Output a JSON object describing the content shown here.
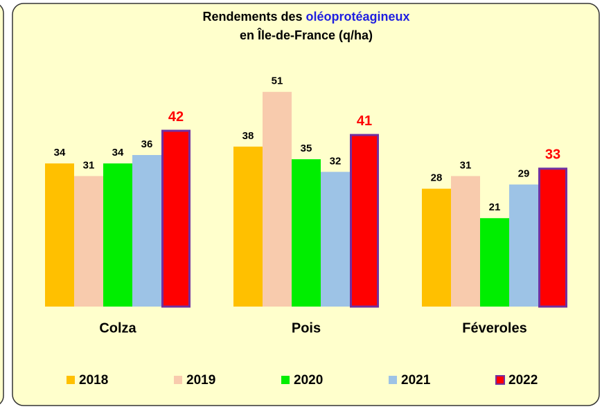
{
  "chart_data": {
    "type": "bar",
    "title": {
      "line1": "Rendements des",
      "highlight": "oléoprotéagineux",
      "line2": "en Île-de-France (q/ha)"
    },
    "categories": [
      "Colza",
      "Pois",
      "Féveroles"
    ],
    "series": [
      {
        "name": "2018",
        "color": "#FFC000",
        "values": [
          34,
          38,
          28
        ]
      },
      {
        "name": "2019",
        "color": "#F8CBAD",
        "values": [
          31,
          51,
          31
        ]
      },
      {
        "name": "2020",
        "color": "#00EE00",
        "values": [
          34,
          35,
          21
        ]
      },
      {
        "name": "2021",
        "color": "#9DC3E6",
        "values": [
          36,
          32,
          29
        ]
      },
      {
        "name": "2022",
        "color": "#FF0000",
        "border": "#7030A0",
        "values": [
          42,
          41,
          33
        ]
      }
    ],
    "ylim": [
      0,
      60
    ]
  }
}
